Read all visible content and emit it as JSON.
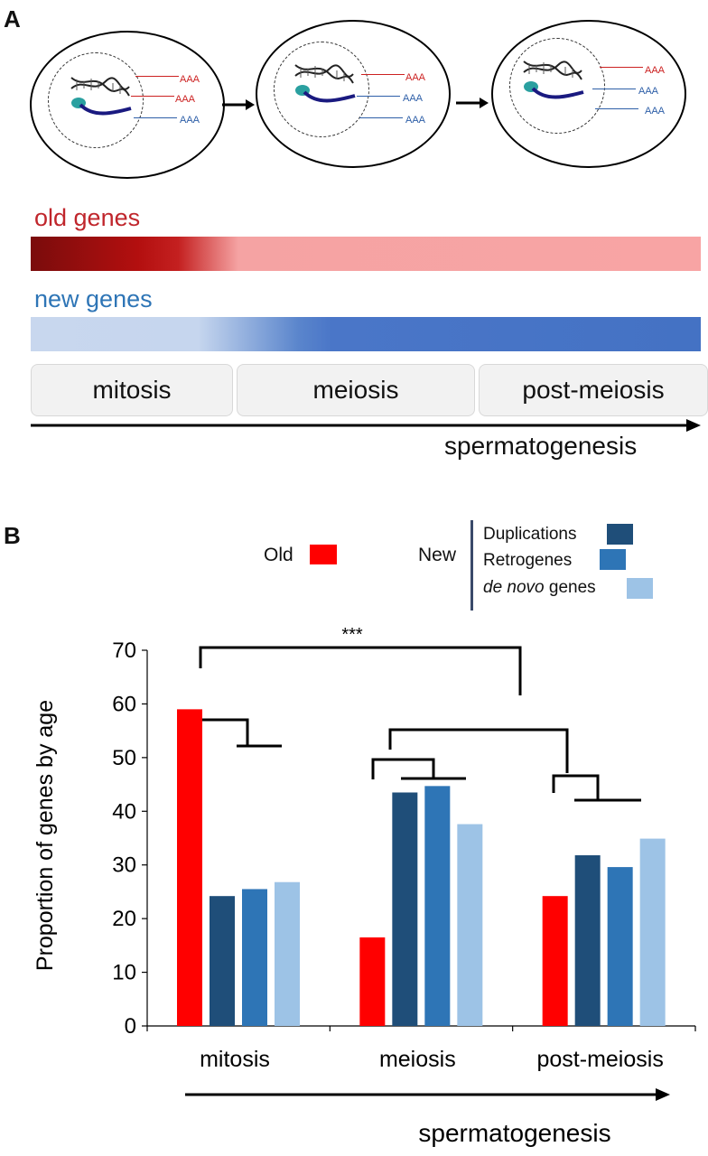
{
  "panel_a": {
    "label": "A",
    "transcript_label": "AAA",
    "old_genes_label": "old genes",
    "new_genes_label": "new genes",
    "stages": [
      "mitosis",
      "meiosis",
      "post-meiosis"
    ],
    "axis_label": "spermatogenesis",
    "colors": {
      "old": "#cc2222",
      "new": "#2e5fa8"
    }
  },
  "panel_b": {
    "label": "B",
    "legend": {
      "old_label": "Old",
      "new_label": "New",
      "dup_label": "Duplications",
      "retro_label": "Retrogenes",
      "denovo_italic": "de novo",
      "denovo_rest": " genes"
    },
    "significance": "***",
    "x_axis_label": "spermatogenesis"
  },
  "chart_data": {
    "type": "bar",
    "categories": [
      "mitosis",
      "meiosis",
      "post-meiosis"
    ],
    "series": [
      {
        "name": "Old",
        "color": "#ff0000",
        "values": [
          59,
          16.5,
          24.2
        ]
      },
      {
        "name": "Duplications",
        "color": "#1f4e79",
        "values": [
          24.2,
          43.5,
          31.8
        ]
      },
      {
        "name": "Retrogenes",
        "color": "#2e75b6",
        "values": [
          25.5,
          44.7,
          29.6
        ]
      },
      {
        "name": "de novo genes",
        "color": "#9dc3e6",
        "values": [
          26.8,
          37.6,
          34.9
        ]
      }
    ],
    "ylabel": "Proportion of genes by age",
    "xlabel": "spermatogenesis",
    "ylim": [
      0,
      70
    ],
    "yticks": [
      0,
      10,
      20,
      30,
      40,
      50,
      60,
      70
    ],
    "grid": false
  }
}
